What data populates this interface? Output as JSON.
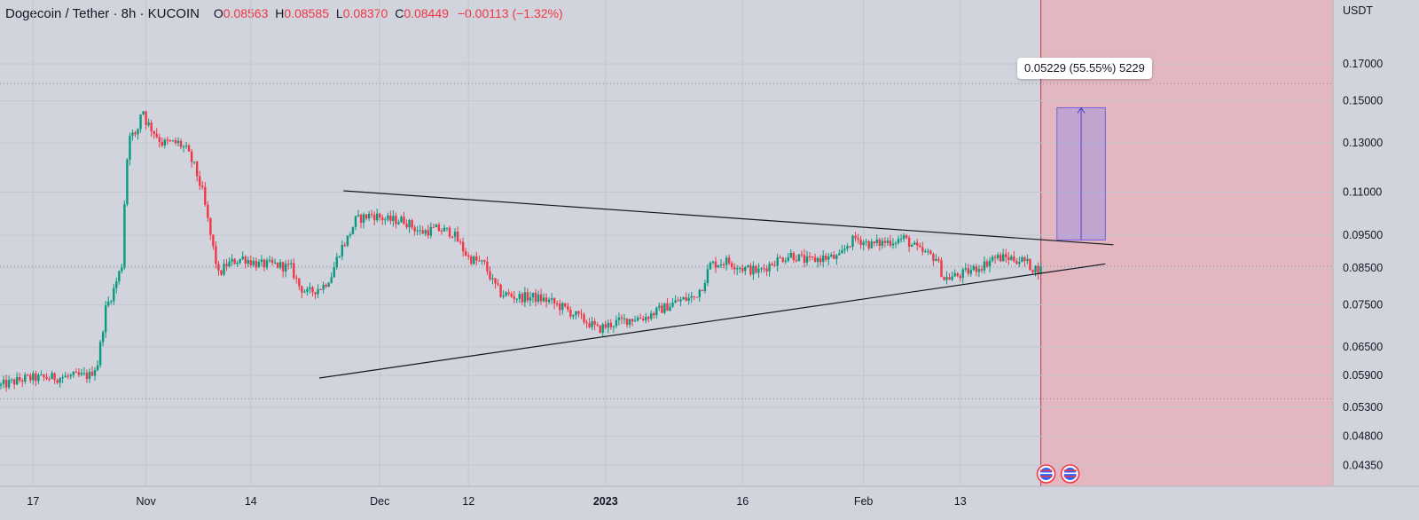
{
  "header": {
    "symbol": "Dogecoin / Tether · 8h · KUCOIN",
    "open_label": "O",
    "open": "0.08563",
    "high_label": "H",
    "high": "0.08585",
    "low_label": "L",
    "low": "0.08370",
    "close_label": "C",
    "close": "0.08449",
    "change": "−0.00113 (−1.32%)"
  },
  "measure_label": "0.05229 (55.55%) 5229",
  "colors": {
    "up": "#089981",
    "down": "#f23645",
    "background": "#d1d4dc",
    "shaded_zone": "#e4b6bf",
    "measure": "#9a8ee6"
  },
  "chart_data": {
    "type": "candlestick",
    "title": "",
    "xlabel": "",
    "ylabel": "",
    "currency": "USDT",
    "y_scale": "log",
    "grid": true,
    "y_ticks": [
      "0.17000",
      "0.15000",
      "0.13000",
      "0.11000",
      "0.09500",
      "0.08500",
      "0.07500",
      "0.06500",
      "0.05900",
      "0.05300",
      "0.04800",
      "0.04350"
    ],
    "x_ticks": [
      "17",
      "Nov",
      "14",
      "Dec",
      "12",
      "2023",
      "16",
      "Feb",
      "13"
    ],
    "close_path": [
      {
        "day": 0,
        "close": 0.057
      },
      {
        "day": 3,
        "close": 0.0584
      },
      {
        "day": 7,
        "close": 0.0586
      },
      {
        "day": 11,
        "close": 0.059
      },
      {
        "day": 12,
        "close": 0.0615
      },
      {
        "day": 13,
        "close": 0.074
      },
      {
        "day": 14,
        "close": 0.079
      },
      {
        "day": 15,
        "close": 0.086
      },
      {
        "day": 15.5,
        "close": 0.118
      },
      {
        "day": 16,
        "close": 0.135
      },
      {
        "day": 16.8,
        "close": 0.132
      },
      {
        "day": 17.5,
        "close": 0.148
      },
      {
        "day": 18,
        "close": 0.14
      },
      {
        "day": 19,
        "close": 0.135
      },
      {
        "day": 20,
        "close": 0.13
      },
      {
        "day": 21,
        "close": 0.13
      },
      {
        "day": 22,
        "close": 0.13
      },
      {
        "day": 23,
        "close": 0.127
      },
      {
        "day": 24,
        "close": 0.12
      },
      {
        "day": 25,
        "close": 0.11
      },
      {
        "day": 26,
        "close": 0.095
      },
      {
        "day": 27,
        "close": 0.083
      },
      {
        "day": 28,
        "close": 0.086
      },
      {
        "day": 30,
        "close": 0.088
      },
      {
        "day": 32,
        "close": 0.086
      },
      {
        "day": 34,
        "close": 0.086
      },
      {
        "day": 36,
        "close": 0.085
      },
      {
        "day": 37,
        "close": 0.08
      },
      {
        "day": 38,
        "close": 0.078
      },
      {
        "day": 40,
        "close": 0.08
      },
      {
        "day": 41,
        "close": 0.083
      },
      {
        "day": 42,
        "close": 0.09
      },
      {
        "day": 43,
        "close": 0.094
      },
      {
        "day": 44,
        "close": 0.1
      },
      {
        "day": 46,
        "close": 0.102
      },
      {
        "day": 48,
        "close": 0.1
      },
      {
        "day": 50,
        "close": 0.1
      },
      {
        "day": 52,
        "close": 0.096
      },
      {
        "day": 54,
        "close": 0.097
      },
      {
        "day": 56,
        "close": 0.096
      },
      {
        "day": 58,
        "close": 0.088
      },
      {
        "day": 59,
        "close": 0.087
      },
      {
        "day": 60,
        "close": 0.086
      },
      {
        "day": 61,
        "close": 0.081
      },
      {
        "day": 62,
        "close": 0.078
      },
      {
        "day": 64,
        "close": 0.077
      },
      {
        "day": 66,
        "close": 0.077
      },
      {
        "day": 68,
        "close": 0.076
      },
      {
        "day": 70,
        "close": 0.074
      },
      {
        "day": 72,
        "close": 0.0715
      },
      {
        "day": 73,
        "close": 0.0705
      },
      {
        "day": 74,
        "close": 0.069
      },
      {
        "day": 76,
        "close": 0.0705
      },
      {
        "day": 78,
        "close": 0.0715
      },
      {
        "day": 80,
        "close": 0.072
      },
      {
        "day": 82,
        "close": 0.074
      },
      {
        "day": 84,
        "close": 0.076
      },
      {
        "day": 86,
        "close": 0.077
      },
      {
        "day": 87,
        "close": 0.08
      },
      {
        "day": 88,
        "close": 0.086
      },
      {
        "day": 90,
        "close": 0.087
      },
      {
        "day": 92,
        "close": 0.085
      },
      {
        "day": 94,
        "close": 0.084
      },
      {
        "day": 96,
        "close": 0.087
      },
      {
        "day": 98,
        "close": 0.089
      },
      {
        "day": 100,
        "close": 0.087
      },
      {
        "day": 102,
        "close": 0.088
      },
      {
        "day": 104,
        "close": 0.088
      },
      {
        "day": 105,
        "close": 0.092
      },
      {
        "day": 106,
        "close": 0.094
      },
      {
        "day": 108,
        "close": 0.092
      },
      {
        "day": 110,
        "close": 0.093
      },
      {
        "day": 112,
        "close": 0.094
      },
      {
        "day": 114,
        "close": 0.09
      },
      {
        "day": 116,
        "close": 0.088
      },
      {
        "day": 117,
        "close": 0.082
      },
      {
        "day": 119,
        "close": 0.083
      },
      {
        "day": 121,
        "close": 0.085
      },
      {
        "day": 122,
        "close": 0.086
      },
      {
        "day": 123,
        "close": 0.088
      },
      {
        "day": 125,
        "close": 0.088
      },
      {
        "day": 127,
        "close": 0.087
      },
      {
        "day": 128,
        "close": 0.085
      },
      {
        "day": 129,
        "close": 0.0845
      }
    ],
    "trendlines": [
      {
        "name": "upper",
        "from": {
          "day": 42.5,
          "price": 0.1105
        },
        "to": {
          "day": 138,
          "price": 0.092
        }
      },
      {
        "name": "lower",
        "from": {
          "day": 39.5,
          "price": 0.0585
        },
        "to": {
          "day": 137,
          "price": 0.0862
        }
      }
    ],
    "measure": {
      "from_price": 0.0935,
      "to_price": 0.1465,
      "start_day": 131,
      "end_day": 137
    },
    "shaded_zone": {
      "from_day": 129
    },
    "dotted_levels": [
      0.159,
      0.0855,
      0.0545
    ]
  },
  "flags": [
    "us-flag-icon",
    "us-flag-icon"
  ]
}
